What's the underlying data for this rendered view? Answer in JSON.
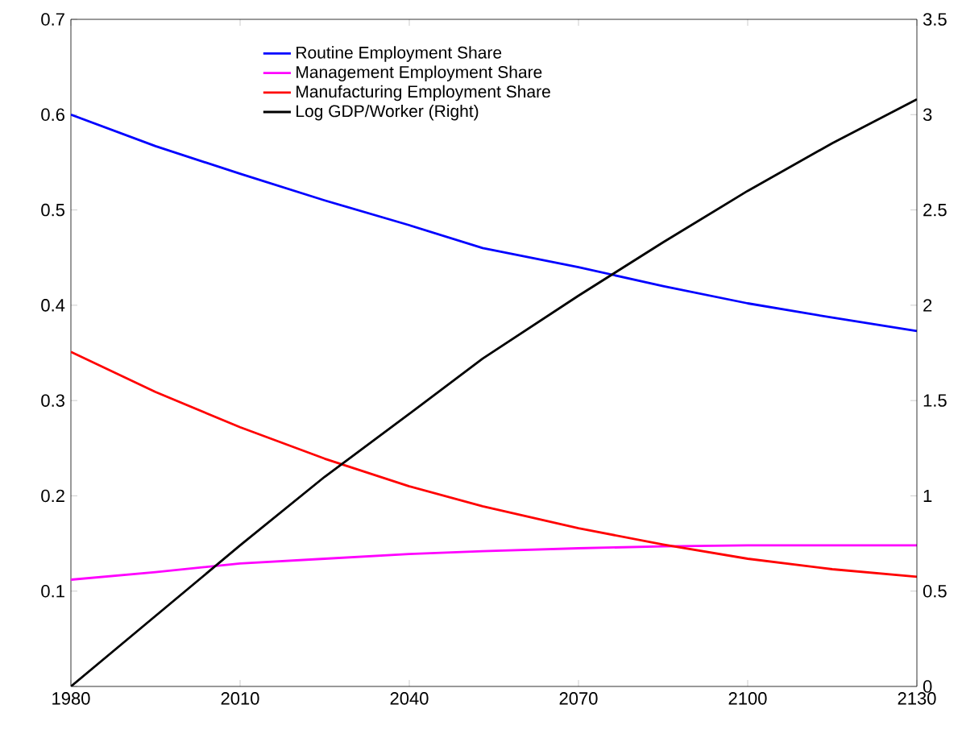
{
  "chart_data": {
    "type": "line",
    "x": [
      1980,
      1995,
      2010,
      2025,
      2040,
      2053,
      2070,
      2085,
      2100,
      2115,
      2130
    ],
    "series": [
      {
        "name": "Routine Employment Share",
        "color": "#0000ff",
        "values": [
          0.6,
          0.567,
          0.538,
          0.51,
          0.484,
          0.46,
          0.44,
          0.42,
          0.402,
          0.387,
          0.373
        ]
      },
      {
        "name": "Management Employment Share",
        "color": "#ff00ff",
        "values": [
          0.112,
          0.12,
          0.129,
          0.134,
          0.139,
          0.142,
          0.145,
          0.147,
          0.148,
          0.148,
          0.148
        ]
      },
      {
        "name": "Manufacturing Employment Share",
        "color": "#ff0000",
        "values": [
          0.351,
          0.309,
          0.272,
          0.239,
          0.21,
          0.189,
          0.166,
          0.149,
          0.134,
          0.123,
          0.115
        ]
      },
      {
        "name": "Log GDP/Worker (Right)",
        "color": "#000000",
        "axis": "y2",
        "values": [
          0,
          0.37,
          0.74,
          1.1,
          1.43,
          1.72,
          2.05,
          2.33,
          2.6,
          2.85,
          3.08
        ]
      }
    ],
    "xlim": [
      1980,
      2130
    ],
    "xticks": [
      1980,
      2010,
      2040,
      2070,
      2100,
      2130
    ],
    "ylim": [
      0,
      0.7
    ],
    "yticks": [
      {
        "value": 0,
        "label": null
      },
      0.1,
      0.2,
      0.3,
      0.4,
      0.5,
      0.6,
      0.7
    ],
    "y2lim": [
      0,
      3.5
    ],
    "y2ticks": [
      0,
      0.5,
      1,
      1.5,
      2,
      2.5,
      3,
      3.5
    ],
    "legend": "top",
    "grid": false,
    "marker": "none",
    "line_style": "solid"
  }
}
